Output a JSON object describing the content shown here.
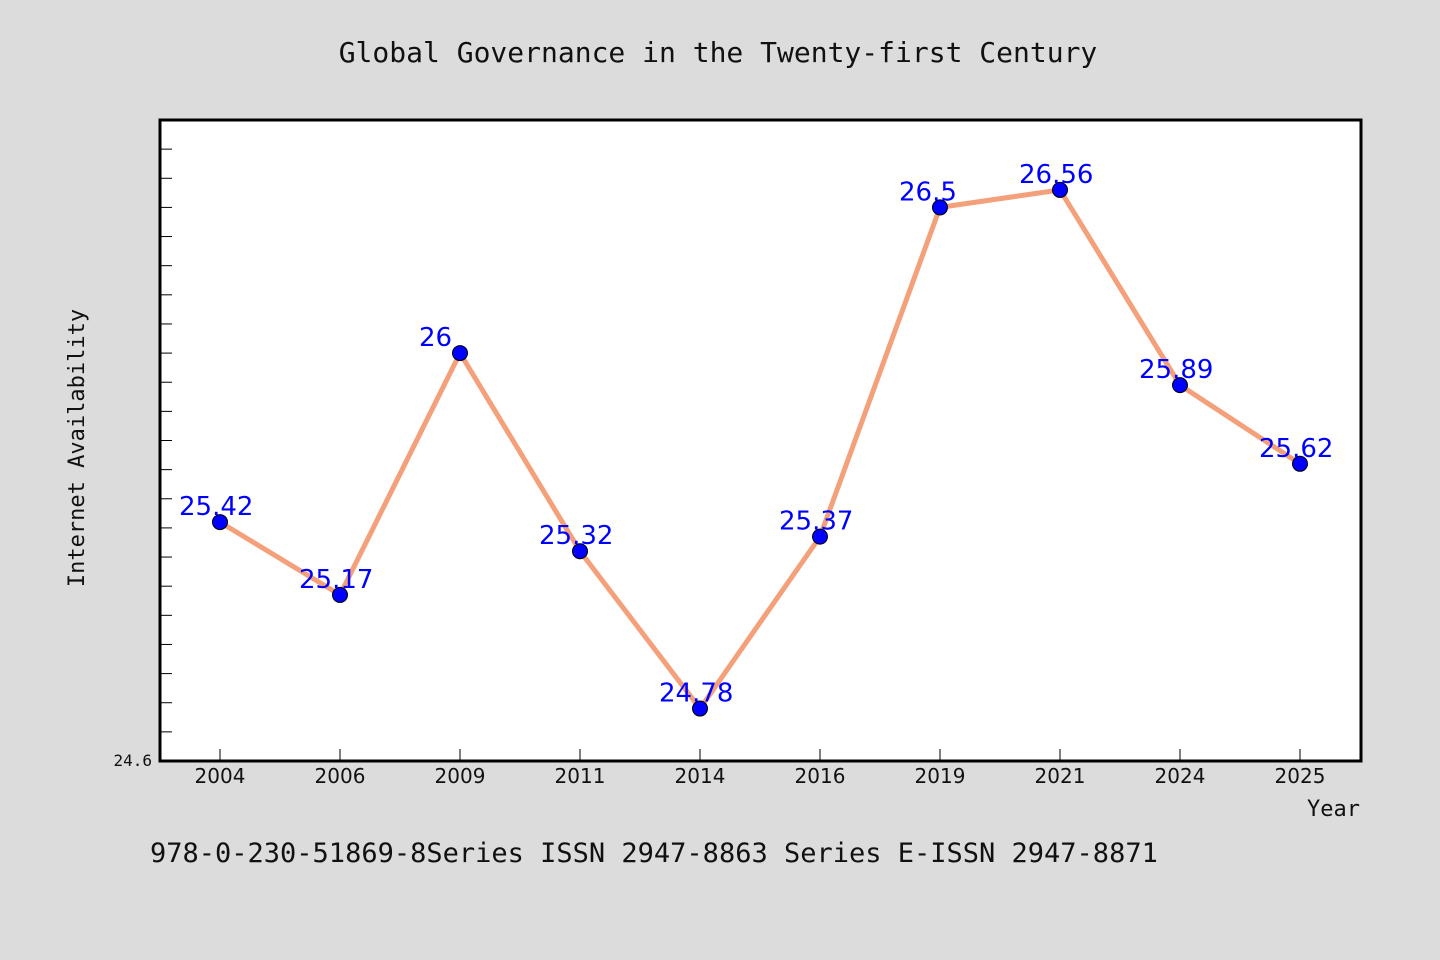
{
  "chart_data": {
    "type": "line",
    "title": "Global Governance in the Twenty-first Century",
    "xlabel": "Year",
    "ylabel": "Internet Availability",
    "categories": [
      "2004",
      "2006",
      "2009",
      "2011",
      "2014",
      "2016",
      "2019",
      "2021",
      "2024",
      "2025"
    ],
    "series": [
      {
        "values": [
          25.42,
          25.17,
          26,
          25.32,
          24.78,
          25.37,
          26.5,
          26.56,
          25.89,
          25.62
        ],
        "line_color": "#f4a07a",
        "marker_color": "#0000ff"
      }
    ],
    "data_labels": [
      "25.42",
      "25.17",
      "26",
      "25.32",
      "24.78",
      "25.37",
      "26.5",
      "26.56",
      "25.89",
      "25.62"
    ],
    "ylim": [
      24.6,
      26.8
    ],
    "y_min_label": "24.6",
    "grid": false
  },
  "footer": {
    "text": "978-0-230-51869-8Series ISSN 2947-8863 Series E-ISSN 2947-8871"
  },
  "colors": {
    "background": "#dcdcdc",
    "plot_background": "#ffffff",
    "line": "#f4a07a",
    "marker": "#0000ff",
    "label": "#0000ff"
  }
}
